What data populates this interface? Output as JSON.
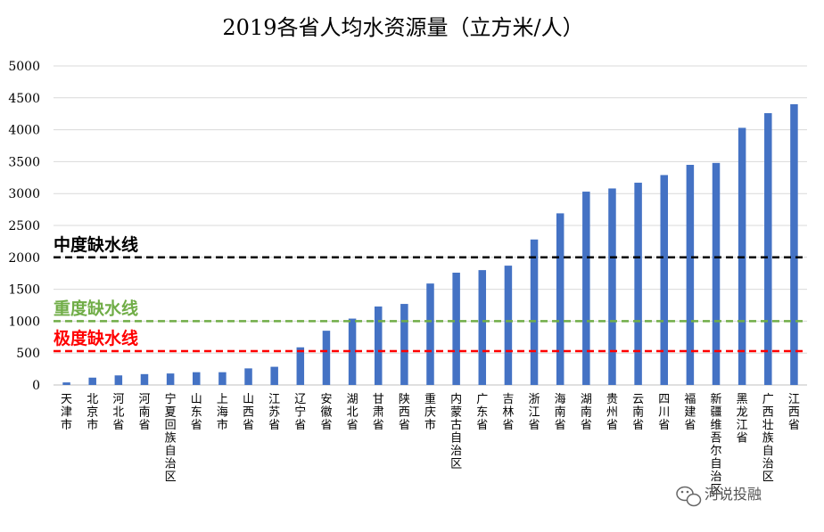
{
  "chart_data": {
    "type": "bar",
    "title": "2019各省人均水资源量（立方米/人）",
    "xlabel": "",
    "ylabel": "",
    "ylim": [
      0,
      5000
    ],
    "yticks": [
      0,
      500,
      1000,
      1500,
      2000,
      2500,
      3000,
      3500,
      4000,
      4500,
      5000
    ],
    "grid": true,
    "legend": "none",
    "bar_color": "#4472C4",
    "categories": [
      "天津市",
      "北京市",
      "河北省",
      "河南省",
      "宁夏回族自治区",
      "山东省",
      "上海市",
      "山西省",
      "江苏省",
      "辽宁省",
      "安徽省",
      "湖北省",
      "甘肃省",
      "陕西省",
      "重庆市",
      "内蒙古自治区",
      "广东省",
      "吉林省",
      "浙江省",
      "海南省",
      "湖南省",
      "贵州省",
      "云南省",
      "四川省",
      "福建省",
      "新疆维吾尔自治区",
      "黑龙江省",
      "广西壮族自治区",
      "江西省"
    ],
    "values": [
      40,
      115,
      150,
      170,
      180,
      200,
      200,
      260,
      285,
      590,
      850,
      1040,
      1230,
      1270,
      1590,
      1760,
      1800,
      1870,
      2280,
      2690,
      3030,
      3080,
      3170,
      3290,
      3450,
      3480,
      4030,
      4260,
      4400
    ],
    "reference_lines": [
      {
        "label": "中度缺水线",
        "value": 2000,
        "color": "#000000"
      },
      {
        "label": "重度缺水线",
        "value": 1000,
        "color": "#70AD47"
      },
      {
        "label": "极度缺水线",
        "value": 530,
        "color": "#FF0000"
      }
    ]
  },
  "watermark": "河说投融"
}
